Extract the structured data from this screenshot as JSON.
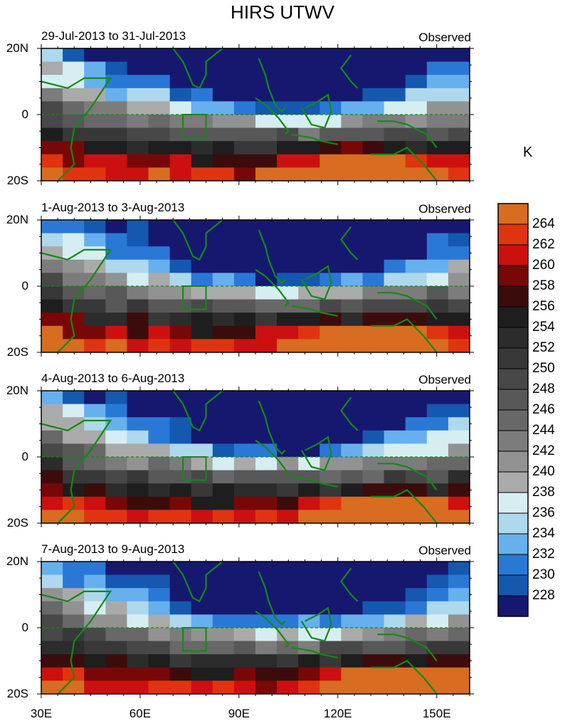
{
  "chart_data": {
    "type": "heatmap",
    "title": "HIRS UTWV",
    "units": "K",
    "x_ticks": [
      "30E",
      "60E",
      "90E",
      "120E",
      "150E"
    ],
    "x_tick_values": [
      30,
      60,
      90,
      120,
      150
    ],
    "xlim": [
      30,
      160
    ],
    "ylim": [
      -20,
      20
    ],
    "y_ticks": [
      "20S",
      "0",
      "20N"
    ],
    "y_tick_values": [
      -20,
      0,
      20
    ],
    "region_box": {
      "lon": [
        73,
        80
      ],
      "lat": [
        -7,
        0
      ]
    },
    "panels": [
      {
        "date_range": "29-Jul-2013 to 31-Jul-2013",
        "label": "Observed"
      },
      {
        "date_range": "1-Aug-2013 to 3-Aug-2013",
        "label": "Observed"
      },
      {
        "date_range": "4-Aug-2013 to 6-Aug-2013",
        "label": "Observed"
      },
      {
        "date_range": "7-Aug-2013 to 9-Aug-2013",
        "label": "Observed"
      }
    ],
    "colorbar": {
      "levels": [
        "264",
        "262",
        "260",
        "258",
        "256",
        "254",
        "252",
        "250",
        "248",
        "246",
        "244",
        "242",
        "240",
        "238",
        "236",
        "234",
        "232",
        "230",
        "228"
      ],
      "colors": [
        "#d86c20",
        "#e03410",
        "#cc1010",
        "#780808",
        "#3c0c0c",
        "#1e1e1e",
        "#2c2c2c",
        "#383838",
        "#484848",
        "#585858",
        "#686868",
        "#7c7c7c",
        "#929292",
        "#aaaaaa",
        "#d6eef2",
        "#aed8ec",
        "#66b0ee",
        "#2a78d6",
        "#1458b0",
        "#161870"
      ]
    }
  },
  "colors": {
    "coast": "#138a13",
    "equator": "#138a13"
  }
}
